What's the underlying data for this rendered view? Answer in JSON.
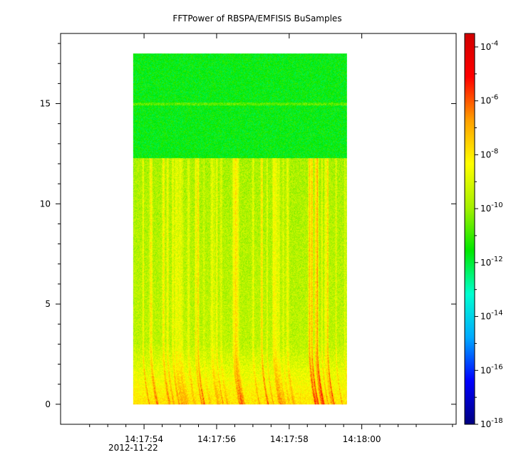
{
  "chart_data": {
    "type": "heatmap",
    "title": "FFTPower of RBSPA/EMFISIS  BuSamples",
    "xlabel": "",
    "ylabel": "",
    "x_ticks": [
      {
        "value": 54,
        "label": "14:17:54"
      },
      {
        "value": 56,
        "label": "14:17:56"
      },
      {
        "value": 58,
        "label": "14:17:58"
      },
      {
        "value": 60,
        "label": "14:18:00"
      }
    ],
    "x_date_label": "2012-11-22",
    "xlim": [
      51.7,
      62.6
    ],
    "data_x_range": [
      53.7,
      59.6
    ],
    "y_ticks": [
      0,
      5,
      10,
      15
    ],
    "ylim": [
      -1.0,
      18.5
    ],
    "data_y_range": [
      0.0,
      17.5
    ],
    "colorbar": {
      "scale": "log",
      "range_exp": [
        -18,
        -3.5
      ],
      "tick_exponents": [
        -18,
        -16,
        -14,
        -12,
        -10,
        -8,
        -6,
        -4
      ],
      "tick_labels": [
        "10",
        "10",
        "10",
        "10",
        "10",
        "10",
        "10",
        "10"
      ],
      "tick_superscripts": [
        "-18",
        "-16",
        "-14",
        "-12",
        "-10",
        "-8",
        "-6",
        "-4"
      ],
      "colormap": [
        "#00007f",
        "#0000ff",
        "#00aaff",
        "#00ffd0",
        "#00e800",
        "#a6f000",
        "#ffff00",
        "#ffa000",
        "#ff0000",
        "#d00000"
      ]
    },
    "grid": false
  }
}
